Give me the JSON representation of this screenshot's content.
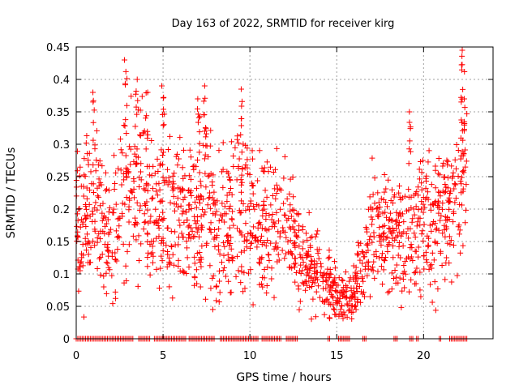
{
  "chart_data": {
    "type": "scatter",
    "title": "Day 163 of 2022, SRMTID for receiver kirg",
    "xlabel": "GPS time / hours",
    "ylabel": "SRMTID / TECUs",
    "xlim": [
      0,
      24
    ],
    "ylim": [
      0,
      0.45
    ],
    "xticks": [
      0,
      5,
      10,
      15,
      20
    ],
    "yticks": [
      0,
      0.05,
      0.1,
      0.15,
      0.2,
      0.25,
      0.3,
      0.35,
      0.4,
      0.45
    ],
    "ytick_labels": [
      "0",
      "0.05",
      "0.1",
      "0.15",
      "0.2",
      "0.25",
      "0.3",
      "0.35",
      "0.4",
      "0.45"
    ],
    "grid": true,
    "marker": "plus",
    "series": [
      {
        "name": "SRMTID",
        "color": "#ff0000",
        "trend": {
          "x": [
            0,
            1,
            2,
            2.5,
            3,
            3.5,
            4,
            4.5,
            5,
            6,
            7,
            7.5,
            8,
            9,
            9.5,
            10,
            11,
            12,
            12.5,
            13,
            14,
            15,
            15.5,
            16,
            16.5,
            17,
            18,
            19,
            20,
            21,
            22,
            22.5
          ],
          "y": [
            0.17,
            0.19,
            0.15,
            0.2,
            0.22,
            0.25,
            0.22,
            0.2,
            0.19,
            0.18,
            0.19,
            0.22,
            0.16,
            0.2,
            0.22,
            0.2,
            0.17,
            0.18,
            0.15,
            0.12,
            0.1,
            0.07,
            0.065,
            0.075,
            0.1,
            0.17,
            0.16,
            0.16,
            0.18,
            0.19,
            0.2,
            0.3
          ]
        },
        "peaks": [
          {
            "x": 2.85,
            "y": 0.43
          },
          {
            "x": 3.5,
            "y": 0.4
          },
          {
            "x": 5.0,
            "y": 0.39
          },
          {
            "x": 7.4,
            "y": 0.39
          },
          {
            "x": 9.5,
            "y": 0.385
          },
          {
            "x": 7.05,
            "y": 0.37
          },
          {
            "x": 1.0,
            "y": 0.38
          },
          {
            "x": 19.2,
            "y": 0.35
          },
          {
            "x": 22.2,
            "y": 0.445
          },
          {
            "x": 22.3,
            "y": 0.37
          }
        ],
        "zero_level_times": [
          [
            0,
            1.9
          ],
          [
            2.0,
            3.3
          ],
          [
            3.6,
            4.3
          ],
          [
            4.5,
            6.3
          ],
          [
            6.5,
            8.0
          ],
          [
            8.3,
            10.5
          ],
          [
            10.7,
            11.8
          ],
          [
            12.1,
            12.8
          ],
          [
            14.5,
            14.6
          ],
          [
            15.1,
            15.8
          ],
          [
            16.5,
            16.7
          ],
          [
            18.3,
            18.5
          ],
          [
            19.2,
            19.4
          ],
          [
            19.6,
            19.7
          ],
          [
            20.9,
            21.0
          ],
          [
            21.5,
            22.5
          ]
        ]
      }
    ]
  }
}
